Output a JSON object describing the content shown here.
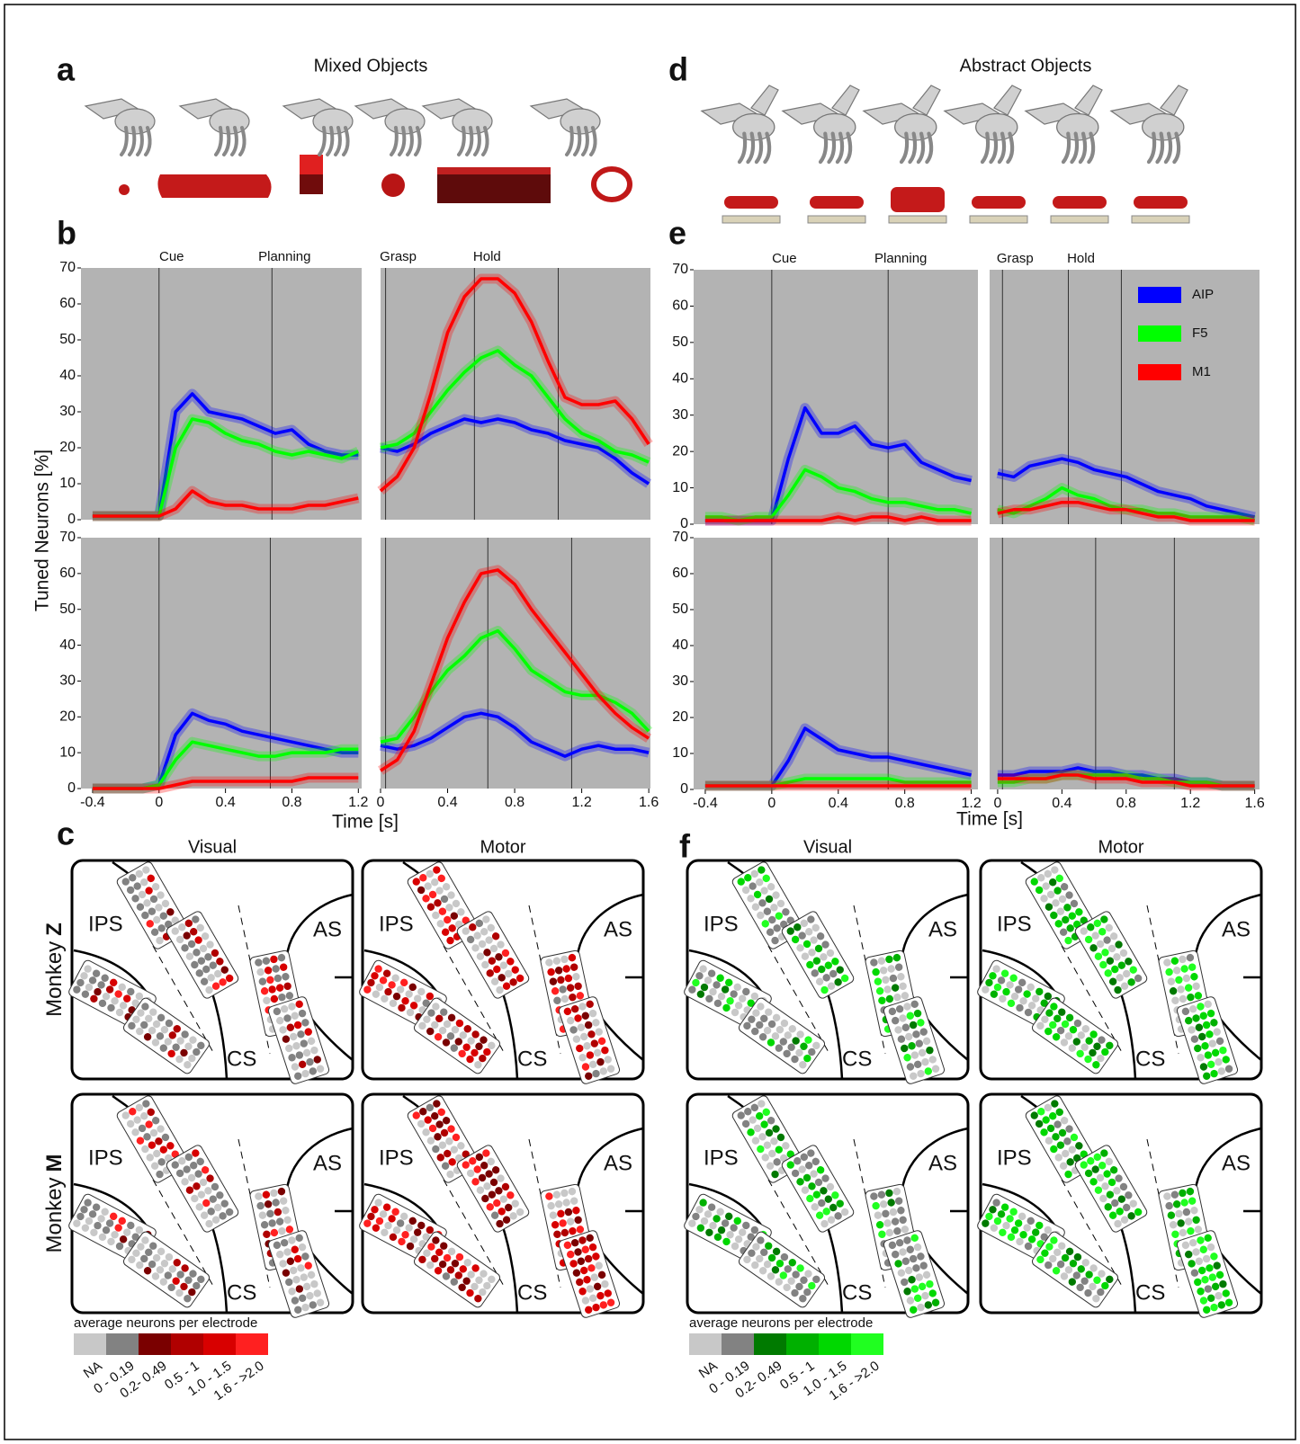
{
  "figure": {
    "panel_a": {
      "letter": "a",
      "title": "Mixed Objects"
    },
    "panel_b": {
      "letter": "b",
      "ylabel": "Tuned Neurons [%]",
      "xlabel": "Time [s]"
    },
    "panel_c": {
      "letter": "c",
      "columns": [
        "Visual",
        "Motor"
      ],
      "monkeys": [
        {
          "label": "Monkey",
          "id": "Z"
        },
        {
          "label": "Monkey",
          "id": "M"
        }
      ],
      "areas": [
        "IPS",
        "AS",
        "CS"
      ],
      "legend": {
        "title": "average neurons per electrode",
        "labels": [
          "NA",
          "0 - 0.19",
          "0.2- 0.49",
          "0.5 - 1",
          "1.0 - 1.5",
          "1.6 - >2.0"
        ],
        "colors": [
          "#c8c8c8",
          "#828282",
          "#7a0000",
          "#b00000",
          "#d80000",
          "#ff2020"
        ]
      }
    },
    "panel_d": {
      "letter": "d",
      "title": "Abstract Objects"
    },
    "panel_e": {
      "letter": "e",
      "xlabel": "Time [s]"
    },
    "panel_f": {
      "letter": "f",
      "columns": [
        "Visual",
        "Motor"
      ],
      "areas": [
        "IPS",
        "AS",
        "CS"
      ],
      "legend": {
        "title": "average neurons per electrode",
        "labels": [
          "NA",
          "0 - 0.19",
          "0.2- 0.49",
          "0.5 - 1",
          "1.0 - 1.5",
          "1.6 - >2.0"
        ],
        "colors": [
          "#c8c8c8",
          "#828282",
          "#007a00",
          "#00b000",
          "#00d800",
          "#20ff20"
        ]
      }
    }
  },
  "chart_data": [
    {
      "type": "line",
      "background": "#b3b3b3",
      "x": [
        -0.4,
        -0.3,
        -0.2,
        -0.1,
        0,
        0.1,
        0.2,
        0.3,
        0.4,
        0.5,
        0.6,
        0.7,
        0.8,
        0.9,
        1.0,
        1.1,
        1.2
      ],
      "xlim": [
        -0.47,
        1.22
      ],
      "ylim": [
        0,
        70
      ],
      "yticks": [
        0,
        10,
        20,
        30,
        40,
        50,
        60,
        70
      ],
      "vlines": [
        0,
        0.68
      ],
      "vline_labels": [
        "Cue",
        "Planning"
      ],
      "series": [
        {
          "color": "#0000ff",
          "values": [
            1,
            1,
            1,
            1,
            1,
            30,
            35,
            30,
            29,
            28,
            26,
            24,
            25,
            21,
            19,
            18,
            18
          ]
        },
        {
          "color": "#00ff00",
          "values": [
            1,
            1,
            1,
            1,
            1,
            20,
            28,
            27,
            24,
            22,
            21,
            19,
            18,
            19,
            18,
            17,
            19
          ]
        },
        {
          "color": "#ff0000",
          "values": [
            1,
            1,
            1,
            1,
            1,
            3,
            8,
            5,
            4,
            4,
            3,
            3,
            3,
            4,
            4,
            5,
            6
          ]
        }
      ]
    },
    {
      "type": "line",
      "background": "#b3b3b3",
      "x": [
        0,
        0.1,
        0.2,
        0.3,
        0.4,
        0.5,
        0.6,
        0.7,
        0.8,
        0.9,
        1.0,
        1.1,
        1.2,
        1.3,
        1.4,
        1.5,
        1.6
      ],
      "xlim": [
        0,
        1.61
      ],
      "ylim": [
        0,
        70
      ],
      "vlines": [
        0.03,
        0.56,
        1.06
      ],
      "vline_labels": [
        "Grasp",
        "Hold",
        null
      ],
      "series": [
        {
          "color": "#0000ff",
          "values": [
            20,
            19,
            21,
            24,
            26,
            28,
            27,
            28,
            27,
            25,
            24,
            22,
            21,
            20,
            17,
            13,
            10
          ]
        },
        {
          "color": "#00ff00",
          "values": [
            20,
            21,
            24,
            30,
            36,
            41,
            45,
            47,
            43,
            40,
            34,
            28,
            24,
            22,
            19,
            18,
            16
          ]
        },
        {
          "color": "#ff0000",
          "values": [
            8,
            12,
            20,
            35,
            52,
            62,
            67,
            67,
            63,
            55,
            44,
            34,
            32,
            32,
            33,
            28,
            21
          ]
        }
      ]
    },
    {
      "type": "line",
      "background": "#b3b3b3",
      "x": [
        -0.4,
        -0.3,
        -0.2,
        -0.1,
        0,
        0.1,
        0.2,
        0.3,
        0.4,
        0.5,
        0.6,
        0.7,
        0.8,
        0.9,
        1.0,
        1.1,
        1.2
      ],
      "xlim": [
        -0.47,
        1.22
      ],
      "ylim": [
        0,
        70
      ],
      "yticks": [
        0,
        10,
        20,
        30,
        40,
        50,
        60,
        70
      ],
      "xticks": [
        -0.4,
        0,
        0.4,
        0.8,
        1.2
      ],
      "vlines": [
        0,
        0.67
      ],
      "series": [
        {
          "color": "#0000ff",
          "values": [
            0,
            0,
            0,
            0,
            1,
            15,
            21,
            19,
            18,
            16,
            15,
            14,
            13,
            12,
            11,
            10,
            10
          ]
        },
        {
          "color": "#00ff00",
          "values": [
            0,
            0,
            0,
            0,
            1,
            8,
            13,
            12,
            11,
            10,
            9,
            9,
            10,
            10,
            10,
            11,
            11
          ]
        },
        {
          "color": "#ff0000",
          "values": [
            0,
            0,
            0,
            0,
            0,
            1,
            2,
            2,
            2,
            2,
            2,
            2,
            2,
            3,
            3,
            3,
            3
          ]
        }
      ]
    },
    {
      "type": "line",
      "background": "#b3b3b3",
      "x": [
        0,
        0.1,
        0.2,
        0.3,
        0.4,
        0.5,
        0.6,
        0.7,
        0.8,
        0.9,
        1.0,
        1.1,
        1.2,
        1.3,
        1.4,
        1.5,
        1.6
      ],
      "xlim": [
        0,
        1.61
      ],
      "ylim": [
        0,
        70
      ],
      "xticks": [
        0,
        0.4,
        0.8,
        1.2,
        1.6
      ],
      "vlines": [
        0.03,
        0.64,
        1.14
      ],
      "series": [
        {
          "color": "#0000ff",
          "values": [
            12,
            11,
            12,
            14,
            17,
            20,
            21,
            20,
            17,
            13,
            11,
            9,
            11,
            12,
            11,
            11,
            10
          ]
        },
        {
          "color": "#00ff00",
          "values": [
            13,
            14,
            20,
            27,
            33,
            37,
            42,
            44,
            39,
            33,
            30,
            27,
            26,
            26,
            24,
            21,
            16
          ]
        },
        {
          "color": "#ff0000",
          "values": [
            5,
            8,
            16,
            29,
            42,
            52,
            60,
            61,
            57,
            50,
            44,
            38,
            32,
            26,
            21,
            17,
            14
          ]
        }
      ]
    },
    {
      "type": "line",
      "background": "#b3b3b3",
      "x": [
        -0.4,
        -0.3,
        -0.2,
        -0.1,
        0,
        0.1,
        0.2,
        0.3,
        0.4,
        0.5,
        0.6,
        0.7,
        0.8,
        0.9,
        1.0,
        1.1,
        1.2
      ],
      "xlim": [
        -0.47,
        1.24
      ],
      "ylim": [
        0,
        70
      ],
      "yticks": [
        0,
        10,
        20,
        30,
        40,
        50,
        60,
        70
      ],
      "vlines": [
        0,
        0.7
      ],
      "vline_labels": [
        "Cue",
        "Planning"
      ],
      "series": [
        {
          "color": "#0000ff",
          "values": [
            1,
            1,
            1,
            1,
            1,
            18,
            32,
            25,
            25,
            27,
            22,
            21,
            22,
            17,
            15,
            13,
            12
          ]
        },
        {
          "color": "#00ff00",
          "values": [
            2,
            2,
            1,
            2,
            2,
            8,
            15,
            13,
            10,
            9,
            7,
            6,
            6,
            5,
            4,
            4,
            3
          ]
        },
        {
          "color": "#ff0000",
          "values": [
            1,
            1,
            1,
            1,
            1,
            1,
            1,
            1,
            2,
            1,
            2,
            2,
            1,
            2,
            1,
            1,
            1
          ]
        }
      ]
    },
    {
      "type": "line",
      "background": "#b3b3b3",
      "x": [
        0,
        0.1,
        0.2,
        0.3,
        0.4,
        0.5,
        0.6,
        0.7,
        0.8,
        0.9,
        1.0,
        1.1,
        1.2,
        1.3,
        1.4,
        1.5,
        1.6
      ],
      "xlim": [
        -0.05,
        1.63
      ],
      "ylim": [
        0,
        70
      ],
      "legend": "upper right",
      "vlines": [
        0.03,
        0.44,
        0.77
      ],
      "vline_labels": [
        "Grasp",
        "Hold",
        null
      ],
      "series": [
        {
          "name": "AIP",
          "color": "#0000ff",
          "values": [
            14,
            13,
            16,
            17,
            18,
            17,
            15,
            14,
            13,
            11,
            9,
            8,
            7,
            5,
            4,
            3,
            2
          ]
        },
        {
          "name": "F5",
          "color": "#00ff00",
          "values": [
            4,
            3,
            5,
            7,
            10,
            8,
            7,
            5,
            4,
            4,
            3,
            3,
            2,
            2,
            2,
            2,
            1
          ]
        },
        {
          "name": "M1",
          "color": "#ff0000",
          "values": [
            3,
            4,
            4,
            5,
            6,
            6,
            5,
            4,
            4,
            3,
            2,
            2,
            1,
            1,
            1,
            1,
            1
          ]
        }
      ]
    },
    {
      "type": "line",
      "background": "#b3b3b3",
      "x": [
        -0.4,
        -0.3,
        -0.2,
        -0.1,
        0,
        0.1,
        0.2,
        0.3,
        0.4,
        0.5,
        0.6,
        0.7,
        0.8,
        0.9,
        1.0,
        1.1,
        1.2
      ],
      "xlim": [
        -0.47,
        1.24
      ],
      "ylim": [
        0,
        70
      ],
      "yticks": [
        0,
        10,
        20,
        30,
        40,
        50,
        60,
        70
      ],
      "xticks": [
        -0.4,
        0,
        0.4,
        0.8,
        1.2
      ],
      "vlines": [
        0,
        0.7
      ],
      "series": [
        {
          "color": "#0000ff",
          "values": [
            1,
            1,
            1,
            1,
            1,
            8,
            17,
            14,
            11,
            10,
            9,
            9,
            8,
            7,
            6,
            5,
            4
          ]
        },
        {
          "color": "#00ff00",
          "values": [
            1,
            1,
            1,
            1,
            1,
            2,
            3,
            3,
            3,
            3,
            3,
            3,
            2,
            2,
            2,
            2,
            2
          ]
        },
        {
          "color": "#ff0000",
          "values": [
            1,
            1,
            1,
            1,
            1,
            1,
            1,
            1,
            1,
            1,
            1,
            1,
            1,
            1,
            1,
            1,
            1
          ]
        }
      ]
    },
    {
      "type": "line",
      "background": "#b3b3b3",
      "x": [
        0,
        0.1,
        0.2,
        0.3,
        0.4,
        0.5,
        0.6,
        0.7,
        0.8,
        0.9,
        1.0,
        1.1,
        1.2,
        1.3,
        1.4,
        1.5,
        1.6
      ],
      "xlim": [
        -0.05,
        1.63
      ],
      "ylim": [
        0,
        70
      ],
      "xticks": [
        0,
        0.4,
        0.8,
        1.2,
        1.6
      ],
      "vlines": [
        0.03,
        0.61,
        1.1
      ],
      "series": [
        {
          "color": "#0000ff",
          "values": [
            4,
            4,
            5,
            5,
            5,
            6,
            5,
            5,
            4,
            4,
            3,
            3,
            2,
            2,
            1,
            1,
            1
          ]
        },
        {
          "color": "#00ff00",
          "values": [
            2,
            2,
            3,
            3,
            4,
            4,
            4,
            4,
            4,
            3,
            3,
            2,
            2,
            2,
            1,
            1,
            1
          ]
        },
        {
          "color": "#ff0000",
          "values": [
            3,
            3,
            3,
            3,
            4,
            4,
            3,
            3,
            3,
            2,
            2,
            2,
            1,
            1,
            1,
            1,
            1
          ]
        }
      ]
    }
  ]
}
